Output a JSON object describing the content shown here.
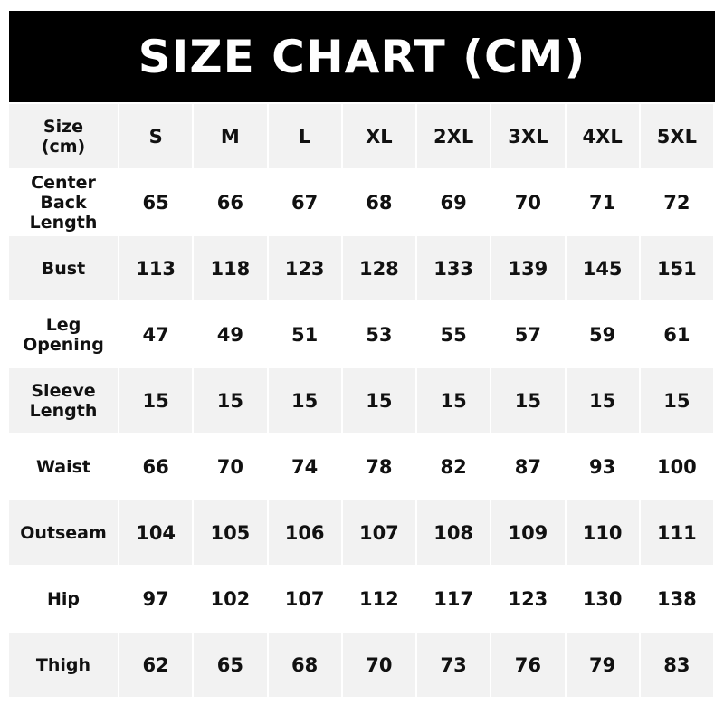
{
  "title": "SIZE CHART (CM)",
  "header": {
    "label": "Size\n(cm)",
    "sizes": [
      "S",
      "M",
      "L",
      "XL",
      "2XL",
      "3XL",
      "4XL",
      "5XL"
    ]
  },
  "rows": [
    {
      "label": "Center\nBack\nLength",
      "values": [
        "65",
        "66",
        "67",
        "68",
        "69",
        "70",
        "71",
        "72"
      ]
    },
    {
      "label": "Bust",
      "values": [
        "113",
        "118",
        "123",
        "128",
        "133",
        "139",
        "145",
        "151"
      ]
    },
    {
      "label": "Leg\nOpening",
      "values": [
        "47",
        "49",
        "51",
        "53",
        "55",
        "57",
        "59",
        "61"
      ]
    },
    {
      "label": "Sleeve\nLength",
      "values": [
        "15",
        "15",
        "15",
        "15",
        "15",
        "15",
        "15",
        "15"
      ]
    },
    {
      "label": "Waist",
      "values": [
        "66",
        "70",
        "74",
        "78",
        "82",
        "87",
        "93",
        "100"
      ]
    },
    {
      "label": "Outseam",
      "values": [
        "104",
        "105",
        "106",
        "107",
        "108",
        "109",
        "110",
        "111"
      ]
    },
    {
      "label": "Hip",
      "values": [
        "97",
        "102",
        "107",
        "112",
        "117",
        "123",
        "130",
        "138"
      ]
    },
    {
      "label": "Thigh",
      "values": [
        "62",
        "65",
        "68",
        "70",
        "73",
        "76",
        "79",
        "83"
      ]
    }
  ]
}
